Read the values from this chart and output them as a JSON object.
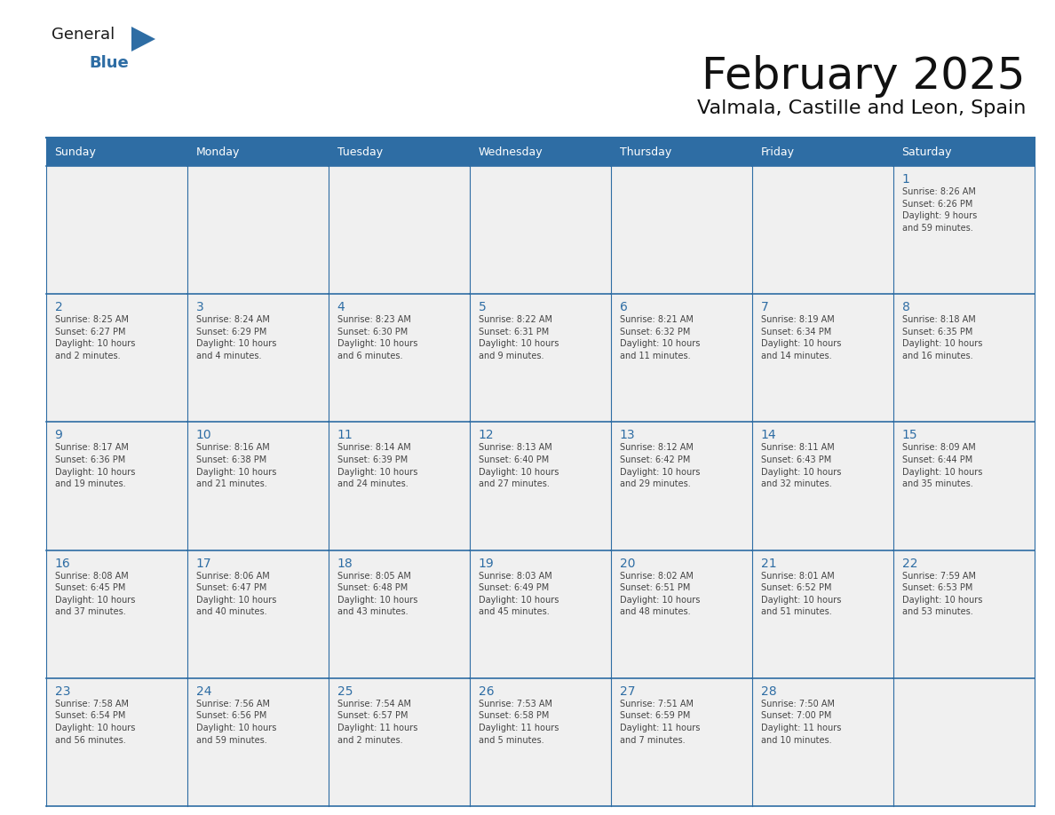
{
  "title": "February 2025",
  "subtitle": "Valmala, Castille and Leon, Spain",
  "header_bg": "#2E6DA4",
  "header_text": "#FFFFFF",
  "cell_bg": "#F0F0F0",
  "border_color": "#2E6DA4",
  "day_headers": [
    "Sunday",
    "Monday",
    "Tuesday",
    "Wednesday",
    "Thursday",
    "Friday",
    "Saturday"
  ],
  "title_color": "#111111",
  "subtitle_color": "#111111",
  "day_num_color": "#2E6DA4",
  "cell_text_color": "#444444",
  "logo_general_color": "#1a1a1a",
  "logo_blue_color": "#2E6DA4",
  "logo_triangle_color": "#2E6DA4",
  "calendar": [
    [
      null,
      null,
      null,
      null,
      null,
      null,
      {
        "day": "1",
        "sunrise": "8:26 AM",
        "sunset": "6:26 PM",
        "daylight": "9 hours\nand 59 minutes."
      }
    ],
    [
      {
        "day": "2",
        "sunrise": "8:25 AM",
        "sunset": "6:27 PM",
        "daylight": "10 hours\nand 2 minutes."
      },
      {
        "day": "3",
        "sunrise": "8:24 AM",
        "sunset": "6:29 PM",
        "daylight": "10 hours\nand 4 minutes."
      },
      {
        "day": "4",
        "sunrise": "8:23 AM",
        "sunset": "6:30 PM",
        "daylight": "10 hours\nand 6 minutes."
      },
      {
        "day": "5",
        "sunrise": "8:22 AM",
        "sunset": "6:31 PM",
        "daylight": "10 hours\nand 9 minutes."
      },
      {
        "day": "6",
        "sunrise": "8:21 AM",
        "sunset": "6:32 PM",
        "daylight": "10 hours\nand 11 minutes."
      },
      {
        "day": "7",
        "sunrise": "8:19 AM",
        "sunset": "6:34 PM",
        "daylight": "10 hours\nand 14 minutes."
      },
      {
        "day": "8",
        "sunrise": "8:18 AM",
        "sunset": "6:35 PM",
        "daylight": "10 hours\nand 16 minutes."
      }
    ],
    [
      {
        "day": "9",
        "sunrise": "8:17 AM",
        "sunset": "6:36 PM",
        "daylight": "10 hours\nand 19 minutes."
      },
      {
        "day": "10",
        "sunrise": "8:16 AM",
        "sunset": "6:38 PM",
        "daylight": "10 hours\nand 21 minutes."
      },
      {
        "day": "11",
        "sunrise": "8:14 AM",
        "sunset": "6:39 PM",
        "daylight": "10 hours\nand 24 minutes."
      },
      {
        "day": "12",
        "sunrise": "8:13 AM",
        "sunset": "6:40 PM",
        "daylight": "10 hours\nand 27 minutes."
      },
      {
        "day": "13",
        "sunrise": "8:12 AM",
        "sunset": "6:42 PM",
        "daylight": "10 hours\nand 29 minutes."
      },
      {
        "day": "14",
        "sunrise": "8:11 AM",
        "sunset": "6:43 PM",
        "daylight": "10 hours\nand 32 minutes."
      },
      {
        "day": "15",
        "sunrise": "8:09 AM",
        "sunset": "6:44 PM",
        "daylight": "10 hours\nand 35 minutes."
      }
    ],
    [
      {
        "day": "16",
        "sunrise": "8:08 AM",
        "sunset": "6:45 PM",
        "daylight": "10 hours\nand 37 minutes."
      },
      {
        "day": "17",
        "sunrise": "8:06 AM",
        "sunset": "6:47 PM",
        "daylight": "10 hours\nand 40 minutes."
      },
      {
        "day": "18",
        "sunrise": "8:05 AM",
        "sunset": "6:48 PM",
        "daylight": "10 hours\nand 43 minutes."
      },
      {
        "day": "19",
        "sunrise": "8:03 AM",
        "sunset": "6:49 PM",
        "daylight": "10 hours\nand 45 minutes."
      },
      {
        "day": "20",
        "sunrise": "8:02 AM",
        "sunset": "6:51 PM",
        "daylight": "10 hours\nand 48 minutes."
      },
      {
        "day": "21",
        "sunrise": "8:01 AM",
        "sunset": "6:52 PM",
        "daylight": "10 hours\nand 51 minutes."
      },
      {
        "day": "22",
        "sunrise": "7:59 AM",
        "sunset": "6:53 PM",
        "daylight": "10 hours\nand 53 minutes."
      }
    ],
    [
      {
        "day": "23",
        "sunrise": "7:58 AM",
        "sunset": "6:54 PM",
        "daylight": "10 hours\nand 56 minutes."
      },
      {
        "day": "24",
        "sunrise": "7:56 AM",
        "sunset": "6:56 PM",
        "daylight": "10 hours\nand 59 minutes."
      },
      {
        "day": "25",
        "sunrise": "7:54 AM",
        "sunset": "6:57 PM",
        "daylight": "11 hours\nand 2 minutes."
      },
      {
        "day": "26",
        "sunrise": "7:53 AM",
        "sunset": "6:58 PM",
        "daylight": "11 hours\nand 5 minutes."
      },
      {
        "day": "27",
        "sunrise": "7:51 AM",
        "sunset": "6:59 PM",
        "daylight": "11 hours\nand 7 minutes."
      },
      {
        "day": "28",
        "sunrise": "7:50 AM",
        "sunset": "7:00 PM",
        "daylight": "11 hours\nand 10 minutes."
      },
      null
    ]
  ]
}
